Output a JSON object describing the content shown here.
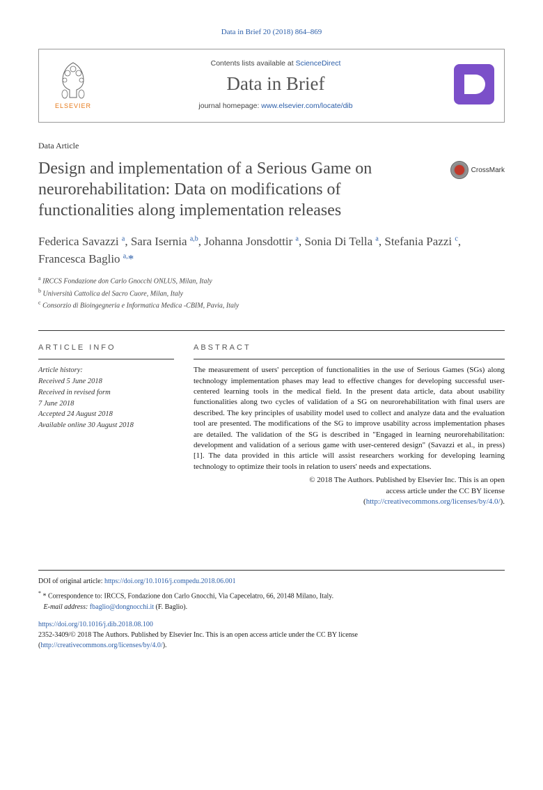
{
  "journal_ref": "Data in Brief 20 (2018) 864–869",
  "header": {
    "contents_prefix": "Contents lists available at ",
    "contents_link": "ScienceDirect",
    "journal_title": "Data in Brief",
    "homepage_prefix": "journal homepage: ",
    "homepage_link": "www.elsevier.com/locate/dib",
    "elsevier_label": "ELSEVIER"
  },
  "article_type": "Data Article",
  "title": "Design and implementation of a Serious Game on neurorehabilitation: Data on modifications of functionalities along implementation releases",
  "crossmark_label": "CrossMark",
  "authors_html": "Federica Savazzi <sup>a</sup>, Sara Isernia <sup>a,b</sup>, Johanna Jonsdottir <sup>a</sup>, Sonia Di Tella <sup>a</sup>, Stefania Pazzi <sup>c</sup>, Francesca Baglio <sup>a,</sup><span class='asterisk'>*</span>",
  "affiliations": [
    {
      "sup": "a",
      "text": "IRCCS Fondazione don Carlo Gnocchi ONLUS, Milan, Italy"
    },
    {
      "sup": "b",
      "text": "Università Cattolica del Sacro Cuore, Milan, Italy"
    },
    {
      "sup": "c",
      "text": "Consorzio di Bioingegneria e Informatica Medica -CBIM, Pavia, Italy"
    }
  ],
  "info_head": "ARTICLE INFO",
  "abstract_head": "ABSTRACT",
  "history_label": "Article history:",
  "history": [
    "Received 5 June 2018",
    "Received in revised form",
    "7 June 2018",
    "Accepted 24 August 2018",
    "Available online 30 August 2018"
  ],
  "abstract": "The measurement of users' perception of functionalities in the use of Serious Games (SGs) along technology implementation phases may lead to effective changes for developing successful user-centered learning tools in the medical field. In the present data article, data about usability functionalities along two cycles of validation of a SG on neurorehabilitation with final users are described. The key principles of usability model used to collect and analyze data and the evaluation tool are presented. The modifications of the SG to improve usability across implementation phases are detailed. The validation of the SG is described in \"Engaged in learning neurorehabilitation: development and validation of a serious game with user-centered design\" (Savazzi et al., in press) [1]. The data provided in this article will assist researchers working for developing learning technology to optimize their tools in relation to users' needs and expectations.",
  "copyright_line1": "© 2018 The Authors. Published by Elsevier Inc. This is an open",
  "copyright_line2": "access article under the CC BY license",
  "copyright_link": "http://creativecommons.org/licenses/by/4.0/",
  "footer": {
    "doi_prefix": "DOI of original article: ",
    "doi_link": "https://doi.org/10.1016/j.compedu.2018.06.001",
    "corr_prefix": "* Correspondence to: IRCCS, Fondazione don Carlo Gnocchi, Via Capecelatro, 66, 20148 Milano, Italy.",
    "email_prefix": "E-mail address: ",
    "email_link": "fbaglio@dongnocchi.it",
    "email_suffix": " (F. Baglio).",
    "article_doi": "https://doi.org/10.1016/j.dib.2018.08.100",
    "issn_line": "2352-3409/© 2018 The Authors. Published by Elsevier Inc. This is an open access article under the CC BY license",
    "license_link": "http://creativecommons.org/licenses/by/4.0/"
  },
  "colors": {
    "link": "#2a5da8",
    "elsevier_orange": "#e67817",
    "dib_purple": "#7b4fc9",
    "text_gray": "#4a4a4a"
  }
}
